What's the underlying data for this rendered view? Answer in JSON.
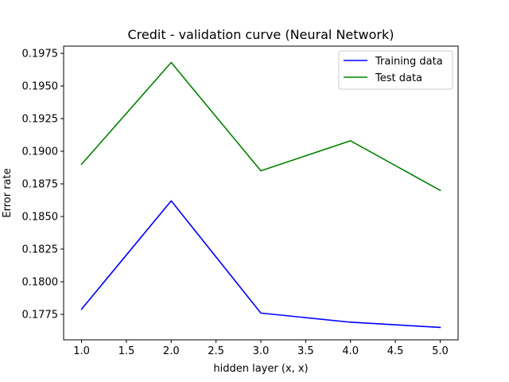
{
  "chart_data": {
    "type": "line",
    "title": "Credit - validation curve (Neural Network)",
    "xlabel": "hidden layer (x, x)",
    "ylabel": "Error rate",
    "x": [
      1.0,
      2.0,
      3.0,
      4.0,
      5.0
    ],
    "series": [
      {
        "name": "Training data",
        "color": "#0000ff",
        "values": [
          0.1779,
          0.1862,
          0.1776,
          0.1769,
          0.1765
        ]
      },
      {
        "name": "Test data",
        "color": "#008000",
        "values": [
          0.189,
          0.1968,
          0.1885,
          0.1908,
          0.187
        ]
      }
    ],
    "xlim": [
      0.8,
      5.2
    ],
    "ylim": [
      0.17555,
      0.19805
    ],
    "xticks": [
      "1.0",
      "1.5",
      "2.0",
      "2.5",
      "3.0",
      "3.5",
      "4.0",
      "4.5",
      "5.0"
    ],
    "yticks": [
      "0.1775",
      "0.1800",
      "0.1825",
      "0.1850",
      "0.1875",
      "0.1900",
      "0.1925",
      "0.1950",
      "0.1975"
    ],
    "legend": "top-right",
    "grid": false
  }
}
